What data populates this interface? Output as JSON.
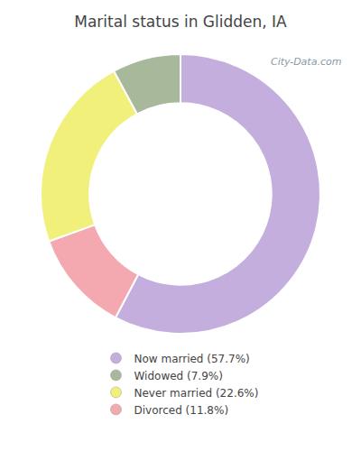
{
  "chart_data": {
    "type": "pie",
    "title": "Marital status in Glidden, IA",
    "categories": [
      "Now married (57.7%)",
      "Divorced (11.8%)",
      "Never married (22.6%)",
      "Widowed (7.9%)"
    ],
    "values": [
      57.7,
      11.8,
      22.6,
      7.9
    ],
    "colors": [
      "#c4aedd",
      "#f4a8b0",
      "#f0f07a",
      "#a8b89a"
    ],
    "legend": "bottom",
    "legend_order": [
      "Now married (57.7%)",
      "Widowed (7.9%)",
      "Never married (22.6%)",
      "Divorced (11.8%)"
    ],
    "annotations": [
      {
        "text": "City-Data.com"
      }
    ]
  }
}
